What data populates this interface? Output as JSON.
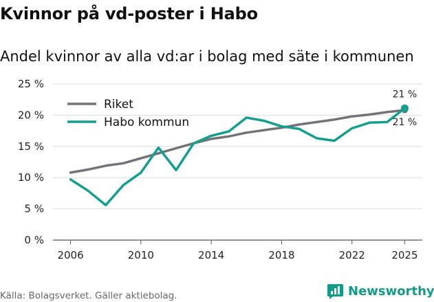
{
  "header": {
    "title": "Kvinnor på vd-poster i Habo",
    "subtitle": "Andel kvinnor av alla vd:ar i bolag med säte i kommunen"
  },
  "footer": {
    "source": "Källa: Bolagsverket. Gäller aktiebolag.",
    "brand": "Newsworthy"
  },
  "colors": {
    "riket": "#747277",
    "habo": "#139f8d",
    "grid": "#dddddd",
    "brand": "#129b87"
  },
  "chart_data": {
    "type": "line",
    "title": "Kvinnor på vd-poster i Habo",
    "subtitle": "Andel kvinnor av alla vd:ar i bolag med säte i kommunen",
    "x": [
      2006,
      2007,
      2008,
      2009,
      2010,
      2011,
      2012,
      2013,
      2014,
      2015,
      2016,
      2017,
      2018,
      2019,
      2020,
      2021,
      2022,
      2023,
      2024,
      2025
    ],
    "xlim": [
      2005,
      2026
    ],
    "xticks": [
      2006,
      2010,
      2014,
      2018,
      2022,
      2025
    ],
    "ylim": [
      0,
      25
    ],
    "yticks": [
      0,
      5,
      10,
      15,
      20,
      25
    ],
    "ytick_labels": [
      "0 %",
      "5 %",
      "10 %",
      "15 %",
      "20 %",
      "25 %"
    ],
    "series": [
      {
        "name": "Riket",
        "values": [
          10.8,
          11.3,
          11.9,
          12.3,
          13.1,
          13.9,
          14.7,
          15.5,
          16.2,
          16.6,
          17.2,
          17.6,
          18.0,
          18.5,
          18.9,
          19.3,
          19.8,
          20.1,
          20.5,
          20.8
        ],
        "end_label": "21 %"
      },
      {
        "name": "Habo kommun",
        "values": [
          9.7,
          7.9,
          5.6,
          8.8,
          10.8,
          14.8,
          11.2,
          15.5,
          16.7,
          17.4,
          19.6,
          19.1,
          18.2,
          17.8,
          16.3,
          15.9,
          17.9,
          18.8,
          18.9,
          21.1
        ],
        "end_label": "21 %"
      }
    ],
    "legend": "top-left",
    "grid": "horizontal"
  }
}
